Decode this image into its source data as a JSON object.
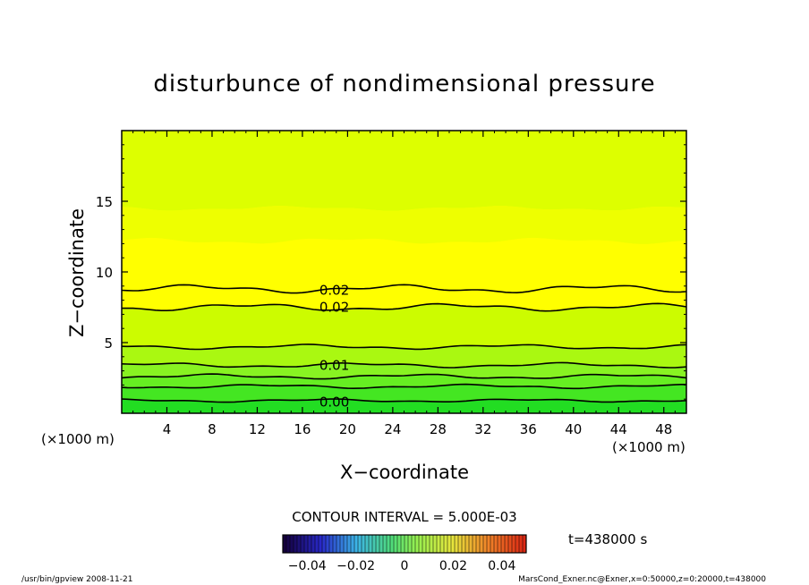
{
  "chart_data": {
    "type": "heatmap",
    "title": "disturbunce of nondimensional pressure",
    "xlabel": "X−coordinate",
    "ylabel": "Z−coordinate",
    "x_unit_left": "(×1000 m)",
    "x_unit_right": "(×1000 m)",
    "xlim": [
      0,
      50
    ],
    "ylim": [
      0,
      20
    ],
    "xticks": [
      4,
      8,
      12,
      16,
      20,
      24,
      28,
      32,
      36,
      40,
      44,
      48
    ],
    "yticks": [
      5,
      10,
      15
    ],
    "grid": false,
    "contour_interval_label": "CONTOUR INTERVAL = 5.000E-03",
    "time_label": "t=438000 s",
    "colorbar": {
      "ticks": [
        -0.04,
        -0.02,
        0,
        0.02,
        0.04
      ],
      "tick_labels": [
        "−0.04",
        "−0.02",
        "0",
        "0.02",
        "0.04"
      ]
    },
    "band_colors": [
      "#22dd22",
      "#44e622",
      "#66ee22",
      "#88f322",
      "#aaf811",
      "#ccfc00",
      "#ddff00",
      "#eeff00",
      "#ffff00",
      "#ffee00"
    ],
    "contour_labels": [
      {
        "text": "0.02",
        "x": 17.5,
        "z": 8.7
      },
      {
        "text": "0.02",
        "x": 17.5,
        "z": 7.5
      },
      {
        "text": "0.01",
        "x": 17.5,
        "z": 3.4
      },
      {
        "text": "0.00",
        "x": 17.5,
        "z": 0.8
      }
    ],
    "footer_left": "/usr/bin/gpview   2008-11-21",
    "footer_right": "MarsCond_Exner.nc@Exner,x=0:50000,z=0:20000,t=438000"
  }
}
